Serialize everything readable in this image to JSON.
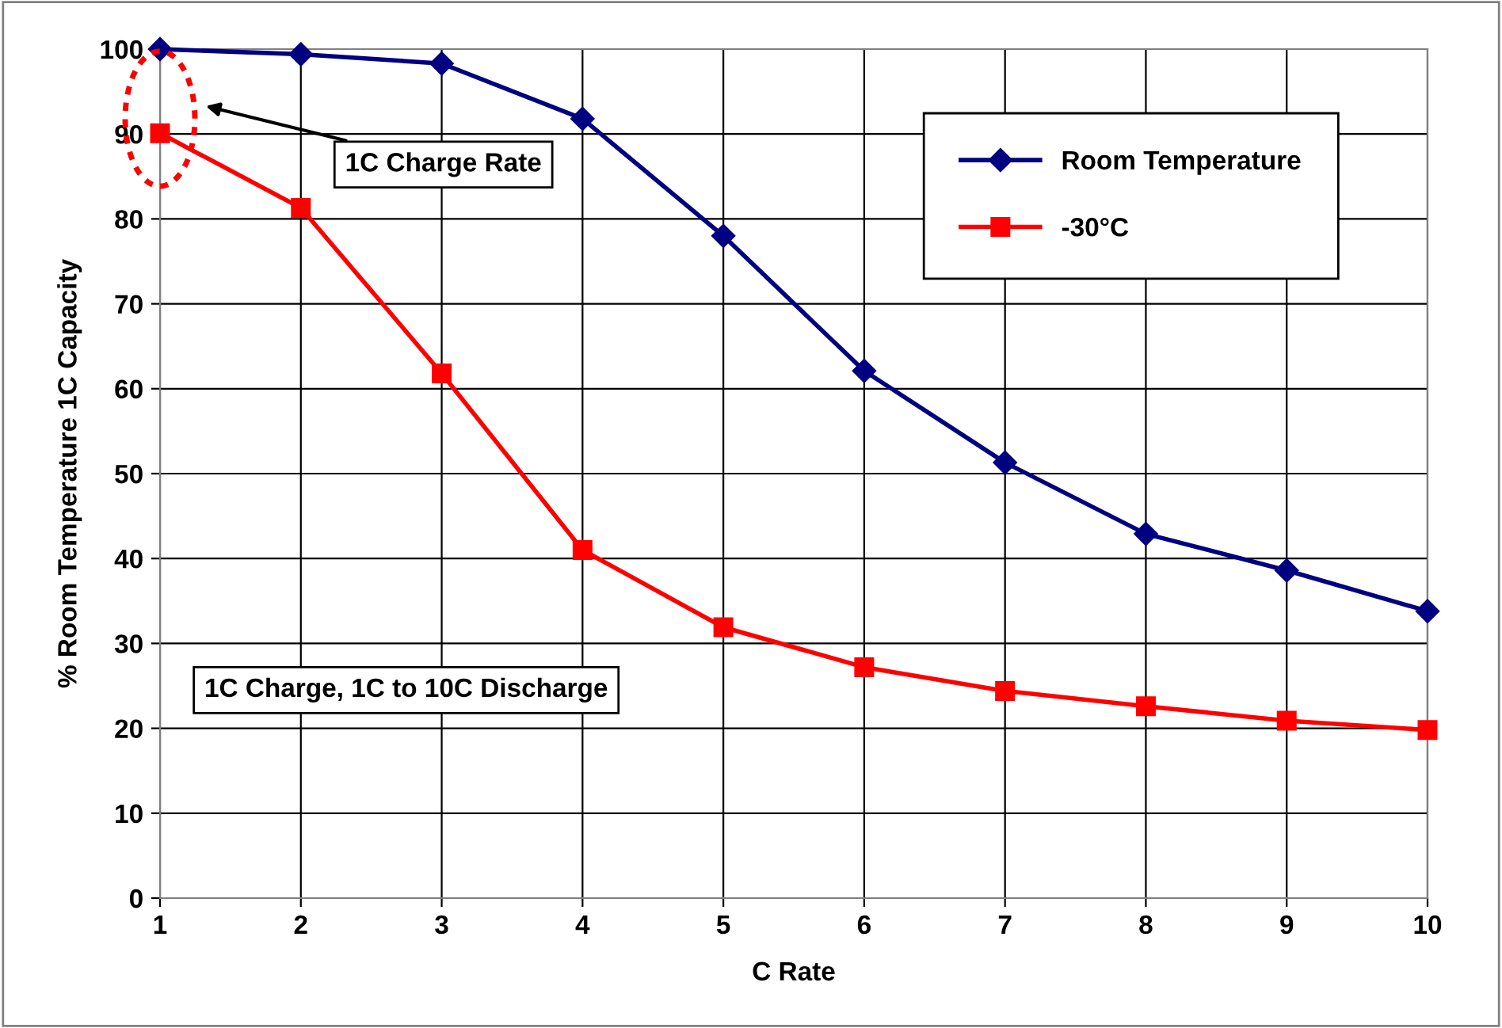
{
  "chart_data": {
    "type": "line",
    "xlabel": "C Rate",
    "ylabel": "% Room Temperature 1C Capacity",
    "x": [
      1,
      2,
      3,
      4,
      5,
      6,
      7,
      8,
      9,
      10
    ],
    "series": [
      {
        "name": "Room Temperature",
        "color": "#000080",
        "marker": "diamond",
        "values": [
          100,
          99.4,
          98.3,
          91.8,
          78.0,
          62.1,
          51.3,
          42.9,
          38.6,
          33.8
        ]
      },
      {
        "name": "-30°C",
        "color": "#ff0000",
        "marker": "square",
        "values": [
          90.1,
          81.3,
          61.8,
          41.0,
          31.9,
          27.2,
          24.4,
          22.6,
          20.9,
          19.8
        ]
      }
    ],
    "xlim": [
      1,
      10
    ],
    "xticks": [
      1,
      2,
      3,
      4,
      5,
      6,
      7,
      8,
      9,
      10
    ],
    "ylim": [
      0,
      100
    ],
    "yticks": [
      0,
      10,
      20,
      30,
      40,
      50,
      60,
      70,
      80,
      90,
      100
    ],
    "grid": true,
    "legend": "top right",
    "line_style": "solid",
    "annotations": [
      "1C Charge Rate",
      "1C Charge, 1C to 10C Discharge"
    ]
  }
}
